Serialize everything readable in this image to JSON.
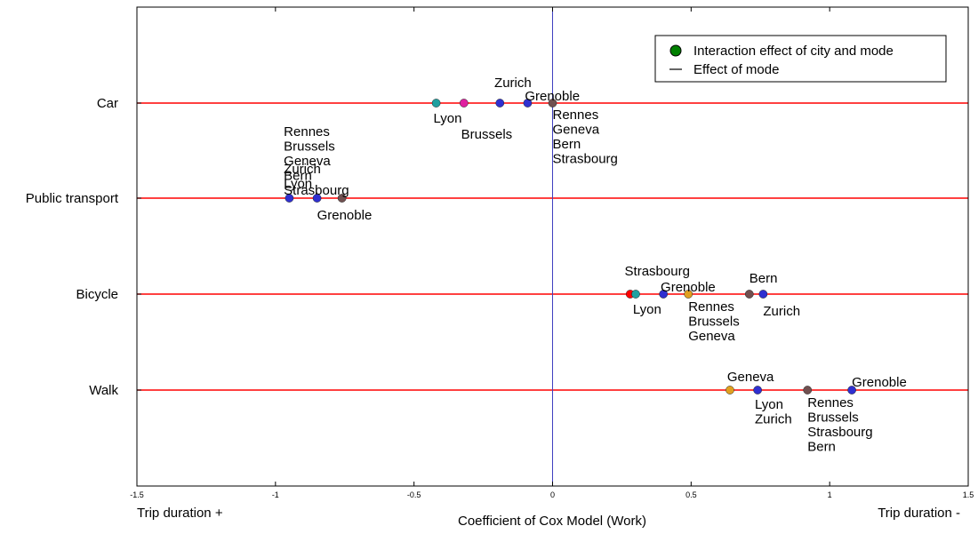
{
  "chart_data": {
    "type": "scatter",
    "xlabel": "Coefficient of Cox Model (Work)",
    "left_note": "Trip duration +",
    "right_note": "Trip duration -",
    "xlim": [
      -1.5,
      1.5
    ],
    "xticks": [
      -1.5,
      -1,
      -0.5,
      0,
      0.5,
      1,
      1.5
    ],
    "xtick_labels": [
      "-1.5",
      "-1",
      "-0.5",
      "0",
      "0.5",
      "1",
      "1.5"
    ],
    "categories": [
      "Car",
      "Public transport",
      "Bicycle",
      "Walk"
    ],
    "legend": {
      "position": "top-right",
      "entries": [
        {
          "label": "Interaction effect of city and mode",
          "marker": "circle",
          "color": "#008000"
        },
        {
          "label": "Effect of mode",
          "marker": "line",
          "color": "#000000"
        }
      ]
    },
    "reference_line": {
      "x": 0,
      "color": "#4040c0"
    },
    "mode_line_color": "#ff0000",
    "mode_effects": [
      {
        "mode": "Car",
        "value": 0.0
      },
      {
        "mode": "Public transport",
        "value": -0.76
      },
      {
        "mode": "Bicycle",
        "value": 0.28
      },
      {
        "mode": "Walk",
        "value": 0.92
      }
    ],
    "points": [
      {
        "mode": "Car",
        "x": -0.42,
        "color": "#20a0a0"
      },
      {
        "mode": "Car",
        "x": -0.32,
        "color": "#e020a0"
      },
      {
        "mode": "Car",
        "x": -0.19,
        "color": "#3030d0"
      },
      {
        "mode": "Car",
        "x": -0.09,
        "color": "#3030d0"
      },
      {
        "mode": "Car",
        "x": 0.0,
        "color": "#705050"
      },
      {
        "mode": "Public transport",
        "x": -0.95,
        "color": "#3030d0"
      },
      {
        "mode": "Public transport",
        "x": -0.85,
        "color": "#3030d0"
      },
      {
        "mode": "Public transport",
        "x": -0.76,
        "color": "#705050"
      },
      {
        "mode": "Bicycle",
        "x": 0.28,
        "color": "#ff0000"
      },
      {
        "mode": "Bicycle",
        "x": 0.3,
        "color": "#20a0a0"
      },
      {
        "mode": "Bicycle",
        "x": 0.4,
        "color": "#3030d0"
      },
      {
        "mode": "Bicycle",
        "x": 0.49,
        "color": "#e0a020"
      },
      {
        "mode": "Bicycle",
        "x": 0.71,
        "color": "#705050"
      },
      {
        "mode": "Bicycle",
        "x": 0.76,
        "color": "#3030d0"
      },
      {
        "mode": "Walk",
        "x": 0.64,
        "color": "#e0a020"
      },
      {
        "mode": "Walk",
        "x": 0.74,
        "color": "#3030d0"
      },
      {
        "mode": "Walk",
        "x": 0.92,
        "color": "#705050"
      },
      {
        "mode": "Walk",
        "x": 1.08,
        "color": "#3030d0"
      }
    ],
    "annotations": [
      {
        "mode": "Car",
        "x": -0.21,
        "dy": -18,
        "lines": [
          "Zurich"
        ]
      },
      {
        "mode": "Car",
        "x": -0.1,
        "dy": -3,
        "lines": [
          "Grenoble"
        ]
      },
      {
        "mode": "Car",
        "x": -0.43,
        "dy": 22,
        "lines": [
          "Lyon"
        ]
      },
      {
        "mode": "Car",
        "x": -0.33,
        "dy": 40,
        "lines": [
          "Brussels"
        ]
      },
      {
        "mode": "Car",
        "x": 0.0,
        "dy": 18,
        "lines": [
          "Rennes",
          "Geneva",
          "Bern",
          "Strasbourg"
        ]
      },
      {
        "mode": "Public transport",
        "x": -0.97,
        "dy": -70,
        "lines": [
          "Rennes",
          "Brussels",
          "Geneva",
          "Bern",
          "Strasbourg"
        ]
      },
      {
        "mode": "Public transport",
        "x": -0.97,
        "dy": -28,
        "lines": [
          "Zurich",
          "Lyon"
        ]
      },
      {
        "mode": "Public transport",
        "x": -0.85,
        "dy": 24,
        "lines": [
          "Grenoble"
        ]
      },
      {
        "mode": "Bicycle",
        "x": 0.26,
        "dy": -21,
        "lines": [
          "Strasbourg"
        ]
      },
      {
        "mode": "Bicycle",
        "x": 0.39,
        "dy": -3,
        "lines": [
          "Grenoble"
        ]
      },
      {
        "mode": "Bicycle",
        "x": 0.71,
        "dy": -13,
        "lines": [
          "Bern"
        ]
      },
      {
        "mode": "Bicycle",
        "x": 0.29,
        "dy": 22,
        "lines": [
          "Lyon"
        ]
      },
      {
        "mode": "Bicycle",
        "x": 0.49,
        "dy": 19,
        "lines": [
          "Rennes",
          "Brussels",
          "Geneva"
        ]
      },
      {
        "mode": "Bicycle",
        "x": 0.76,
        "dy": 24,
        "lines": [
          "Zurich"
        ]
      },
      {
        "mode": "Walk",
        "x": 0.63,
        "dy": -10,
        "lines": [
          "Geneva"
        ]
      },
      {
        "mode": "Walk",
        "x": 0.73,
        "dy": 21,
        "lines": [
          "Lyon",
          "Zurich"
        ]
      },
      {
        "mode": "Walk",
        "x": 0.92,
        "dy": 19,
        "lines": [
          "Rennes",
          "Brussels",
          "Strasbourg",
          "Bern"
        ]
      },
      {
        "mode": "Walk",
        "x": 1.08,
        "dy": -4,
        "lines": [
          "Grenoble"
        ]
      }
    ]
  }
}
